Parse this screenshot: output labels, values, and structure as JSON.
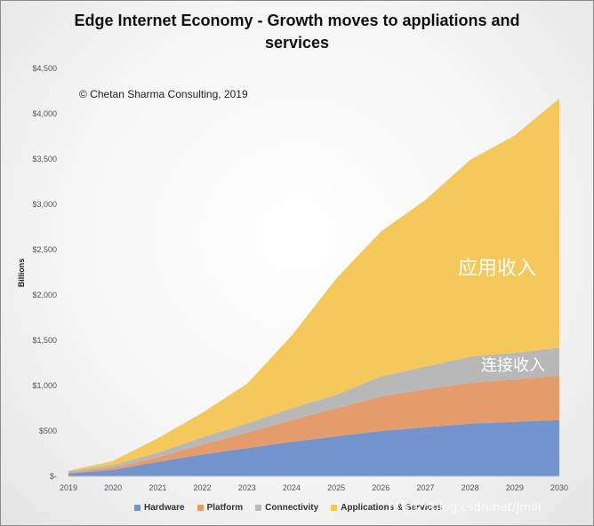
{
  "title_lines": [
    "Edge Internet Economy - Growth moves to appliations and",
    "services"
  ],
  "copyright": "© Chetan Sharma Consulting, 2019",
  "watermark": "https://blog.csdn.net/Jmill",
  "annotations": {
    "applications": "应用收入",
    "connectivity": "连接收入"
  },
  "colors": {
    "Hardware": "#7394cc",
    "Platform": "#e59c6c",
    "Connectivity": "#b8b8b8",
    "Applications & Services": "#f4c85a"
  },
  "chart_data": {
    "type": "area",
    "stacked": true,
    "title": "Edge Internet Economy - Growth moves to appliations and services",
    "ylabel": "Billions",
    "xlabel": "",
    "x": [
      2019,
      2020,
      2021,
      2022,
      2023,
      2024,
      2025,
      2026,
      2027,
      2028,
      2029,
      2030
    ],
    "y_ticks": [
      "$-",
      "$500",
      "$1,000",
      "$1,500",
      "$2,000",
      "$2,500",
      "$3,000",
      "$3,500",
      "$4,000",
      "$4,500"
    ],
    "ylim": [
      0,
      4500
    ],
    "legend_position": "bottom",
    "series": [
      {
        "name": "Hardware",
        "values": [
          30,
          70,
          160,
          240,
          310,
          380,
          440,
          500,
          540,
          580,
          600,
          620
        ]
      },
      {
        "name": "Platform",
        "values": [
          10,
          25,
          50,
          110,
          170,
          240,
          310,
          380,
          420,
          450,
          470,
          490
        ]
      },
      {
        "name": "Connectivity",
        "values": [
          15,
          30,
          50,
          80,
          100,
          130,
          150,
          220,
          250,
          290,
          290,
          310
        ]
      },
      {
        "name": "Applications & Services",
        "values": [
          5,
          45,
          160,
          270,
          440,
          800,
          1280,
          1600,
          1840,
          2170,
          2400,
          2750
        ]
      }
    ]
  }
}
